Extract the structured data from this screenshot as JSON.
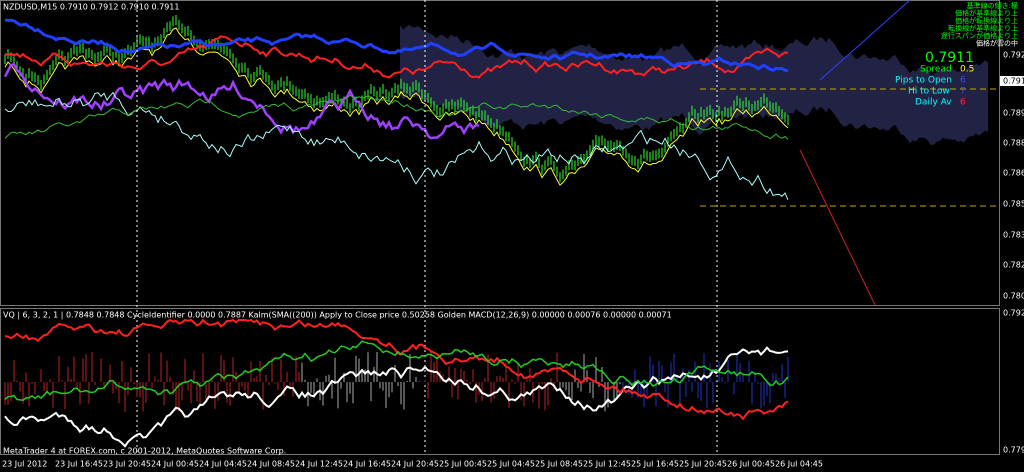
{
  "header": {
    "symbol": "NZDUSD,M15  0.7910 0.7912 0.7910 0.7911"
  },
  "info_panel": {
    "lines": [
      "基準線の傾き:横",
      "価格が基準線より上",
      "価格が転換線より上",
      "転換線が基準線より上",
      "遅行スパンが価格より上",
      "価格が雲の中"
    ],
    "price": "0.7911",
    "spread_label": "Spread",
    "spread_value": "0.5",
    "pips_label": "Pips to Open",
    "pips_value": "6",
    "hilo_label": "Hi to Low",
    "hilo_value": "7",
    "daily_label": "Daily Av",
    "daily_value": "6"
  },
  "price_axis": [
    "0.7925",
    "0.7911",
    "0.7895",
    "0.7880",
    "0.7865",
    "0.7850",
    "0.7835",
    "0.7820",
    "0.7805"
  ],
  "indicator": {
    "header": "VQ | 6, 3, 2, 1 | 0.7848 0.7848  CycleIdentifier 0.0000 0.7887  Kalm(SMA((200)) Apply to Close price 0.50258  Golden MACD(12,26,9) 0.00000 0.00076 0.00000 0.00071",
    "axis_top": "0.7921",
    "axis_bottom": "0.779"
  },
  "footer": "MetaTrader 4 at FOREX.com, c 2001-2012, MetaQuotes Software Corp.",
  "time_axis": [
    "23 Jul 2012",
    "23 Jul 16:45",
    "23 Jul 20:45",
    "24 Jul 00:45",
    "24 Jul 04:45",
    "24 Jul 08:45",
    "24 Jul 12:45",
    "24 Jul 16:45",
    "24 Jul 20:45",
    "25 Jul 00:45",
    "25 Jul 04:45",
    "25 Jul 08:45",
    "25 Jul 12:45",
    "25 Jul 16:45",
    "25 Jul 20:45",
    "26 Jul 00:45",
    "26 Jul 04:45"
  ]
}
